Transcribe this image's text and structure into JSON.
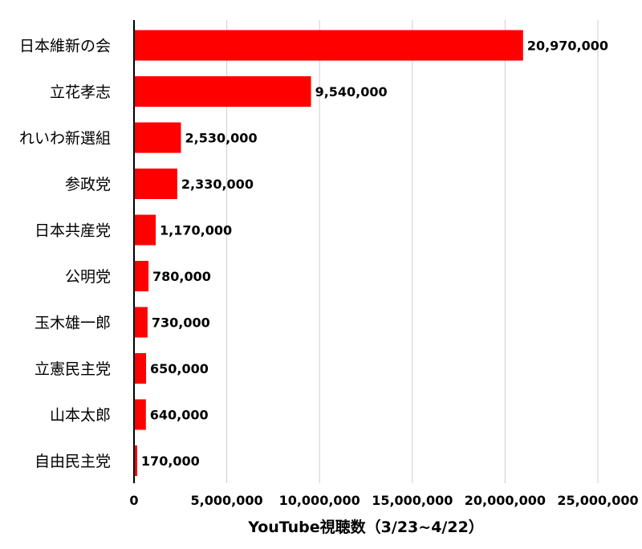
{
  "chart_data": {
    "type": "bar",
    "orientation": "horizontal",
    "categories": [
      "日本維新の会",
      "立花孝志",
      "れいわ新選組",
      "参政党",
      "日本共産党",
      "公明党",
      "玉木雄一郎",
      "立憲民主党",
      "山本太郎",
      "自由民主党"
    ],
    "values": [
      20970000,
      9540000,
      2530000,
      2330000,
      1170000,
      780000,
      730000,
      650000,
      640000,
      170000
    ],
    "value_labels": [
      "20,970,000",
      "9,540,000",
      "2,530,000",
      "2,330,000",
      "1,170,000",
      "780,000",
      "730,000",
      "650,000",
      "640,000",
      "170,000"
    ],
    "xlabel": "YouTube視聴数（3/23~4/22）",
    "ylabel": "",
    "xlim": [
      0,
      25000000
    ],
    "xticks": [
      0,
      5000000,
      10000000,
      15000000,
      20000000,
      25000000
    ],
    "xtick_labels": [
      "0",
      "5,000,000",
      "10,000,000",
      "15,000,000",
      "20,000,000",
      "25,000,000"
    ],
    "grid": "vertical",
    "bar_color": "#ff0000",
    "grid_color": "#cccccc",
    "axis_color": "#000000"
  }
}
